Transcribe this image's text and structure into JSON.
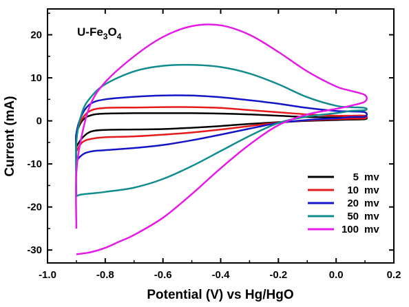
{
  "chart_data": {
    "type": "line",
    "title": "",
    "annotation": {
      "main": "U-Fe",
      "sub1": "3",
      "mid": "O",
      "sub2": "4"
    },
    "xlabel": "Potential (V) vs Hg/HgO",
    "ylabel": "Current (mA)",
    "xlim": [
      -1.0,
      0.2
    ],
    "ylim": [
      -33,
      26
    ],
    "xticks": [
      -1.0,
      -0.8,
      -0.6,
      -0.4,
      -0.2,
      0.0,
      0.2
    ],
    "xtick_labels": [
      "-1.0",
      "-0.8",
      "-0.6",
      "-0.4",
      "-0.2",
      "0.0",
      "0.2"
    ],
    "yticks": [
      -30,
      -20,
      -10,
      0,
      10,
      20
    ],
    "ytick_labels": [
      "-30",
      "-20",
      "-10",
      "0",
      "10",
      "20"
    ],
    "grid": false,
    "legend_position": "bottom-right",
    "series": [
      {
        "name": "5",
        "unit": "mv",
        "color": "#000000",
        "x": [
          -0.9,
          -0.88,
          -0.85,
          -0.8,
          -0.7,
          -0.6,
          -0.5,
          -0.4,
          -0.3,
          -0.2,
          -0.1,
          0.0,
          0.05,
          0.1,
          0.1,
          0.05,
          0.0,
          -0.1,
          -0.2,
          -0.3,
          -0.4,
          -0.5,
          -0.6,
          -0.7,
          -0.8,
          -0.85,
          -0.88,
          -0.9,
          -0.9
        ],
        "y": [
          -6.0,
          -4.0,
          -2.5,
          -2.1,
          -2.0,
          -1.9,
          -1.6,
          -1.2,
          -0.7,
          -0.3,
          0.0,
          0.2,
          0.3,
          0.4,
          0.8,
          0.8,
          0.8,
          0.9,
          1.2,
          1.5,
          1.7,
          1.8,
          1.8,
          1.8,
          1.7,
          1.3,
          0.0,
          -3.0,
          -6.0
        ]
      },
      {
        "name": "10",
        "unit": "mv",
        "color": "#e41a1c",
        "x": [
          -0.9,
          -0.88,
          -0.85,
          -0.8,
          -0.7,
          -0.6,
          -0.5,
          -0.4,
          -0.3,
          -0.2,
          -0.1,
          0.0,
          0.05,
          0.1,
          0.1,
          0.05,
          0.0,
          -0.1,
          -0.2,
          -0.3,
          -0.4,
          -0.5,
          -0.6,
          -0.7,
          -0.8,
          -0.85,
          -0.88,
          -0.9,
          -0.9
        ],
        "y": [
          -7.0,
          -5.0,
          -4.2,
          -3.8,
          -3.6,
          -3.2,
          -2.7,
          -2.0,
          -1.2,
          -0.4,
          0.1,
          0.4,
          0.5,
          0.6,
          1.2,
          1.2,
          1.2,
          1.5,
          2.0,
          2.5,
          3.0,
          3.2,
          3.2,
          3.1,
          3.0,
          2.4,
          0.5,
          -3.0,
          -7.0
        ]
      },
      {
        "name": "20",
        "unit": "mv",
        "color": "#1414c8",
        "x": [
          -0.9,
          -0.89,
          -0.87,
          -0.84,
          -0.8,
          -0.7,
          -0.6,
          -0.5,
          -0.4,
          -0.3,
          -0.2,
          -0.1,
          0.0,
          0.05,
          0.1,
          0.1,
          0.05,
          0.0,
          -0.1,
          -0.2,
          -0.3,
          -0.4,
          -0.5,
          -0.6,
          -0.7,
          -0.8,
          -0.85,
          -0.88,
          -0.9,
          -0.9
        ],
        "y": [
          -9.5,
          -8.5,
          -7.5,
          -7.0,
          -6.8,
          -6.3,
          -5.6,
          -4.5,
          -3.2,
          -1.8,
          -0.5,
          0.2,
          0.6,
          0.9,
          1.0,
          2.0,
          2.2,
          2.3,
          3.0,
          4.0,
          4.8,
          5.5,
          5.9,
          5.9,
          5.6,
          5.0,
          4.0,
          1.5,
          -3.0,
          -9.5
        ]
      },
      {
        "name": "50",
        "unit": "mv",
        "color": "#108c8c",
        "x": [
          -0.9,
          -0.89,
          -0.87,
          -0.84,
          -0.8,
          -0.7,
          -0.6,
          -0.5,
          -0.4,
          -0.3,
          -0.2,
          -0.1,
          0.0,
          0.05,
          0.1,
          0.1,
          0.05,
          0.0,
          -0.1,
          -0.2,
          -0.3,
          -0.4,
          -0.5,
          -0.6,
          -0.7,
          -0.8,
          -0.85,
          -0.88,
          -0.9,
          -0.9
        ],
        "y": [
          -17.5,
          -17.2,
          -17.0,
          -16.8,
          -16.5,
          -15.5,
          -13.5,
          -10.5,
          -7.0,
          -3.5,
          -0.5,
          1.0,
          1.8,
          2.3,
          2.5,
          3.0,
          3.2,
          3.5,
          5.5,
          8.5,
          11.0,
          12.5,
          13.0,
          12.8,
          11.5,
          8.5,
          5.5,
          2.0,
          -5.0,
          -17.5
        ]
      },
      {
        "name": "100",
        "unit": "mv",
        "color": "#e619e6",
        "x": [
          -0.9,
          -0.85,
          -0.8,
          -0.75,
          -0.7,
          -0.6,
          -0.5,
          -0.4,
          -0.3,
          -0.2,
          -0.1,
          0.0,
          0.05,
          0.1,
          0.1,
          0.05,
          0.0,
          -0.1,
          -0.2,
          -0.3,
          -0.4,
          -0.5,
          -0.6,
          -0.7,
          -0.8,
          -0.85,
          -0.88,
          -0.9,
          -0.9
        ],
        "y": [
          -31.0,
          -30.5,
          -29.5,
          -28.0,
          -26.5,
          -22.5,
          -17.0,
          -11.0,
          -5.5,
          -1.0,
          1.5,
          2.8,
          3.5,
          4.5,
          6.0,
          7.0,
          8.0,
          11.5,
          16.0,
          20.0,
          22.2,
          22.0,
          19.5,
          15.0,
          9.0,
          4.0,
          -3.0,
          -12.0,
          -25.0
        ]
      }
    ]
  }
}
